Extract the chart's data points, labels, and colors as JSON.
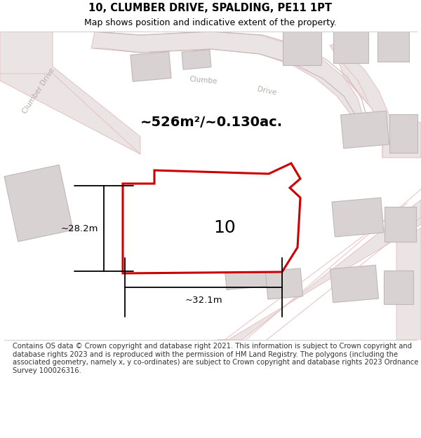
{
  "title": "10, CLUMBER DRIVE, SPALDING, PE11 1PT",
  "subtitle": "Map shows position and indicative extent of the property.",
  "footer": "Contains OS data © Crown copyright and database right 2021. This information is subject to Crown copyright and database rights 2023 and is reproduced with the permission of HM Land Registry. The polygons (including the associated geometry, namely x, y co-ordinates) are subject to Crown copyright and database rights 2023 Ordnance Survey 100026316.",
  "area_label": "~526m²/~0.130ac.",
  "width_label": "~32.1m",
  "height_label": "~28.2m",
  "number_label": "10",
  "bg_color": "#faf7f7",
  "road_fill": "#eae4e4",
  "road_stroke": "#d4aaaa",
  "road_stroke_outer": "#e8c0c0",
  "building_fill": "#d8d2d2",
  "building_stroke": "#c0b8b8",
  "plot_fill": "#ffffff",
  "plot_stroke": "#cc0000",
  "road_label_color": "#b8acac",
  "title_fontsize": 10.5,
  "subtitle_fontsize": 9,
  "footer_fontsize": 7.2,
  "area_label_fontsize": 14,
  "number_label_fontsize": 18,
  "dim_label_fontsize": 9.5
}
